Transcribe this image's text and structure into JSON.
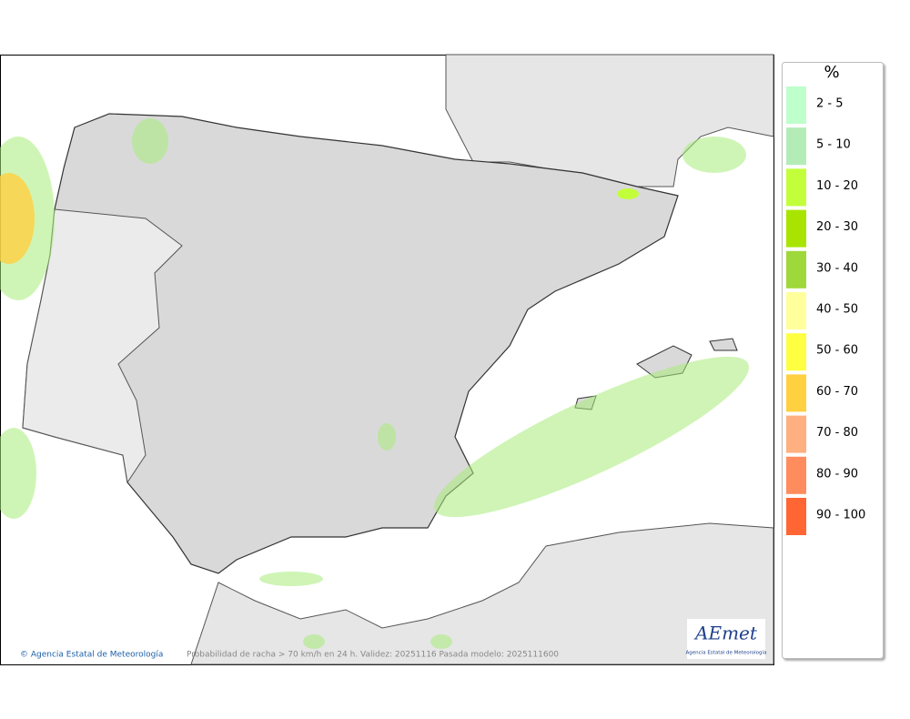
{
  "legend": {
    "title": "%",
    "entries": [
      {
        "label": "2 - 5",
        "color": "#bfffcb"
      },
      {
        "label": "5 - 10",
        "color": "#b4ecb8"
      },
      {
        "label": "10 - 20",
        "color": "#c2ff3a"
      },
      {
        "label": "20 - 30",
        "color": "#a8e400"
      },
      {
        "label": "30 - 40",
        "color": "#9fd83a"
      },
      {
        "label": "40 - 50",
        "color": "#ffff9c"
      },
      {
        "label": "50 - 60",
        "color": "#ffff42"
      },
      {
        "label": "60 - 70",
        "color": "#ffd040"
      },
      {
        "label": "70 - 80",
        "color": "#ffb080"
      },
      {
        "label": "80 - 90",
        "color": "#ff8c5c"
      },
      {
        "label": "90 - 100",
        "color": "#ff6633"
      }
    ]
  },
  "footer": {
    "credit": "© Agencia Estatal de Meteorología",
    "caption": "Probabilidad de racha > 70 km/h en 24 h. Validez: 20251116 Pasada modelo: 2025111600"
  },
  "logo": {
    "name": "AEmet",
    "subtitle": "Agencia Estatal de Meteorología"
  }
}
